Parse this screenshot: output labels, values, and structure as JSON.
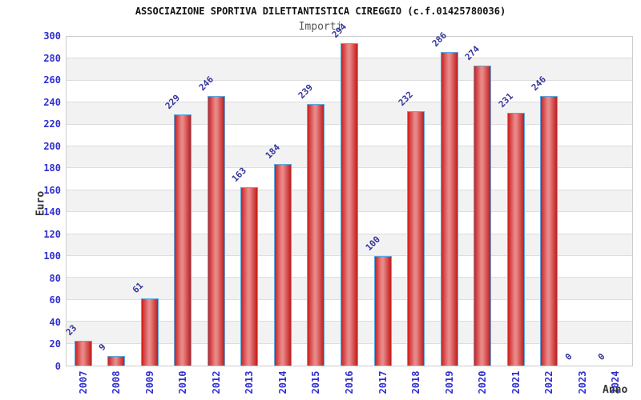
{
  "chart_data": {
    "type": "bar",
    "title": "ASSOCIAZIONE SPORTIVA DILETTANTISTICA CIREGGIO (c.f.01425780036)",
    "subtitle": "Importi",
    "xlabel": "Anno",
    "ylabel": "Euro",
    "categories": [
      "2007",
      "2008",
      "2009",
      "2010",
      "2012",
      "2013",
      "2014",
      "2015",
      "2016",
      "2017",
      "2018",
      "2019",
      "2020",
      "2021",
      "2022",
      "2023",
      "2024"
    ],
    "values": [
      23,
      9,
      61,
      229,
      246,
      163,
      184,
      239,
      294,
      100,
      232,
      286,
      274,
      231,
      246,
      0,
      0
    ],
    "ylim": [
      0,
      300
    ],
    "ytick_step": 20,
    "grid": "horizontal-alternating-bands",
    "legend": "none",
    "value_labels_rotation_deg": -45,
    "xtick_rotation_deg": -90,
    "colors": {
      "background": "#ffffff",
      "title_color": "#111111",
      "subtitle_color": "#555555",
      "axis_label_color": "#333333",
      "tick_label": "#2f2fd0",
      "value_label": "#34349b",
      "bar_border": "#5aa7e0",
      "bar_dark": "#c92121",
      "bar_dark2": "#c01d1d",
      "bar_light": "#e98888",
      "band_gray": "#f2f2f2",
      "band_white": "#ffffff",
      "gridline": "#dddddd",
      "plot_border": "#cccccc"
    }
  }
}
